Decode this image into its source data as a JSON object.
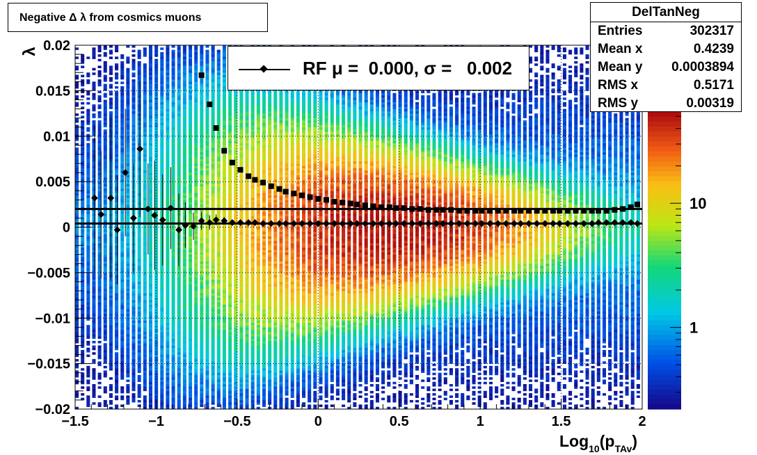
{
  "chart_data": {
    "type": "heatmap",
    "title": "Negative Δ λ from cosmics muons",
    "xlabel": "Log",
    "xlabel_sub": "10",
    "xlabel_paren_open": "(p",
    "xlabel_sub2": "TAv",
    "xlabel_paren_close": ")",
    "ylabel": "λ",
    "xlim": [
      -1.5,
      2.0
    ],
    "ylim": [
      -0.02,
      0.02
    ],
    "x_ticks": [
      "−1.5",
      "−1",
      "−0.5",
      "0",
      "0.5",
      "1",
      "1.5",
      "2"
    ],
    "x_tick_values": [
      -1.5,
      -1.0,
      -0.5,
      0,
      0.5,
      1.0,
      1.5,
      2.0
    ],
    "y_ticks": [
      "0.02",
      "0.015",
      "0.01",
      "0.005",
      "0",
      "−0.005",
      "−0.01",
      "−0.015",
      "−0.02"
    ],
    "y_tick_values": [
      0.02,
      0.015,
      0.01,
      0.005,
      0,
      -0.005,
      -0.01,
      -0.015,
      -0.02
    ],
    "grid": true,
    "colorscale": "rainbow-log",
    "colorbar_ticks": [
      "10",
      "1"
    ],
    "colorbar_tick_values": [
      10,
      1
    ],
    "colorbar_range": [
      0.22,
      55
    ],
    "fit_lines": [
      {
        "y": 0.002
      },
      {
        "y": 0.0004
      }
    ],
    "series": [
      {
        "marker": "diamond",
        "x": [
          -1.38,
          -1.34,
          -1.28,
          -1.24,
          -1.19,
          -1.14,
          -1.1,
          -1.05,
          -1.01,
          -0.96,
          -0.91,
          -0.86,
          -0.82,
          -0.77,
          -0.72,
          -0.67,
          -0.63,
          -0.58,
          -0.53,
          -0.48,
          -0.43,
          -0.39,
          -0.34,
          -0.29,
          -0.24,
          -0.2,
          -0.15,
          -0.1,
          -0.05,
          0.0,
          0.05,
          0.1,
          0.15,
          0.2,
          0.24,
          0.29,
          0.34,
          0.39,
          0.44,
          0.48,
          0.53,
          0.58,
          0.63,
          0.68,
          0.73,
          0.77,
          0.82,
          0.87,
          0.92,
          0.97,
          1.01,
          1.06,
          1.11,
          1.16,
          1.21,
          1.25,
          1.3,
          1.35,
          1.4,
          1.45,
          1.49,
          1.54,
          1.59,
          1.64,
          1.69,
          1.73,
          1.78,
          1.83,
          1.88,
          1.93,
          1.97
        ],
        "y": [
          0.0032,
          0.0014,
          0.0032,
          -0.0003,
          0.006,
          0.001,
          0.0086,
          0.002,
          0.0013,
          0.0008,
          0.0021,
          -0.0003,
          0.0002,
          0.0001,
          0.0007,
          0.0005,
          0.0008,
          0.0007,
          0.0005,
          0.0005,
          0.0005,
          0.0005,
          0.0004,
          0.0004,
          0.0004,
          0.0004,
          0.0004,
          0.0004,
          0.0004,
          0.0004,
          0.0004,
          0.0004,
          0.0004,
          0.0004,
          0.0004,
          0.0004,
          0.0004,
          0.0004,
          0.0004,
          0.0004,
          0.0004,
          0.0004,
          0.0004,
          0.0004,
          0.0004,
          0.0004,
          0.0004,
          0.0004,
          0.0004,
          0.0004,
          0.0004,
          0.0004,
          0.0004,
          0.0004,
          0.0004,
          0.0004,
          0.0004,
          0.0004,
          0.0004,
          0.0004,
          0.0004,
          0.0004,
          0.0004,
          0.0004,
          0.0004,
          0.0005,
          0.0005,
          0.0005,
          0.0005,
          0.0005,
          0.0004
        ],
        "err": [
          0.008,
          0.007,
          0.009,
          0.006,
          0.007,
          0.006,
          0.0075,
          0.005,
          0.006,
          0.005,
          0.0045,
          0.004,
          0.0025,
          0.0015,
          0.001,
          0.0008,
          0.0006,
          0.0004,
          0.0003,
          0.0003,
          0.0002,
          0.0002,
          0.0002,
          0.0001,
          0.0001,
          0.0001,
          0.0001,
          0.0001,
          0.0001,
          0.0001,
          0.0001,
          0.0001,
          0.0001,
          0.0001,
          0.0001,
          0.0001,
          0.0001,
          0.0001,
          0.0001,
          0.0001,
          0.0001,
          0.0001,
          0.0001,
          0.0001,
          0.0001,
          0.0001,
          0.0001,
          0.0001,
          0.0001,
          0.0001,
          0.0001,
          0.0001,
          0.0001,
          0.0001,
          0.0001,
          0.0001,
          0.0001,
          0.0001,
          0.0001,
          0.0001,
          0.0001,
          0.0001,
          0.0001,
          0.0001,
          0.0001,
          0.0001,
          0.0001,
          0.0001,
          0.0001,
          0.0001,
          0.0001
        ]
      },
      {
        "marker": "square",
        "x": [
          -0.72,
          -0.67,
          -0.63,
          -0.58,
          -0.53,
          -0.48,
          -0.43,
          -0.39,
          -0.34,
          -0.29,
          -0.24,
          -0.2,
          -0.15,
          -0.1,
          -0.05,
          0.0,
          0.05,
          0.1,
          0.15,
          0.2,
          0.24,
          0.29,
          0.34,
          0.39,
          0.44,
          0.48,
          0.53,
          0.58,
          0.63,
          0.68,
          0.73,
          0.77,
          0.82,
          0.87,
          0.92,
          0.97,
          1.01,
          1.06,
          1.11,
          1.16,
          1.21,
          1.25,
          1.3,
          1.35,
          1.4,
          1.45,
          1.49,
          1.54,
          1.59,
          1.64,
          1.69,
          1.73,
          1.78,
          1.83,
          1.88,
          1.93,
          1.97
        ],
        "y": [
          0.0167,
          0.0135,
          0.0109,
          0.0084,
          0.0071,
          0.0063,
          0.0056,
          0.0052,
          0.0049,
          0.0045,
          0.0042,
          0.0039,
          0.0037,
          0.0035,
          0.0033,
          0.0031,
          0.003,
          0.0028,
          0.0027,
          0.0026,
          0.0025,
          0.0024,
          0.0023,
          0.0022,
          0.0022,
          0.0021,
          0.0021,
          0.002,
          0.002,
          0.0019,
          0.0019,
          0.0019,
          0.0019,
          0.0018,
          0.0018,
          0.0018,
          0.0018,
          0.0018,
          0.0018,
          0.0018,
          0.0018,
          0.0018,
          0.0018,
          0.0018,
          0.0018,
          0.0018,
          0.0018,
          0.0018,
          0.0018,
          0.0018,
          0.0018,
          0.0018,
          0.0018,
          0.0019,
          0.002,
          0.0022,
          0.0025
        ]
      }
    ]
  },
  "stats": {
    "title": "DelTanNeg",
    "rows": [
      {
        "label": "Entries",
        "value": "302317"
      },
      {
        "label": "Mean x",
        "value": "0.4239"
      },
      {
        "label": "Mean y",
        "value": "0.0003894"
      },
      {
        "label": "RMS x",
        "value": "0.5171"
      },
      {
        "label": "RMS y",
        "value": "0.00319"
      }
    ]
  },
  "legend": {
    "label": "RF μ =  0.000, σ =   0.002"
  }
}
